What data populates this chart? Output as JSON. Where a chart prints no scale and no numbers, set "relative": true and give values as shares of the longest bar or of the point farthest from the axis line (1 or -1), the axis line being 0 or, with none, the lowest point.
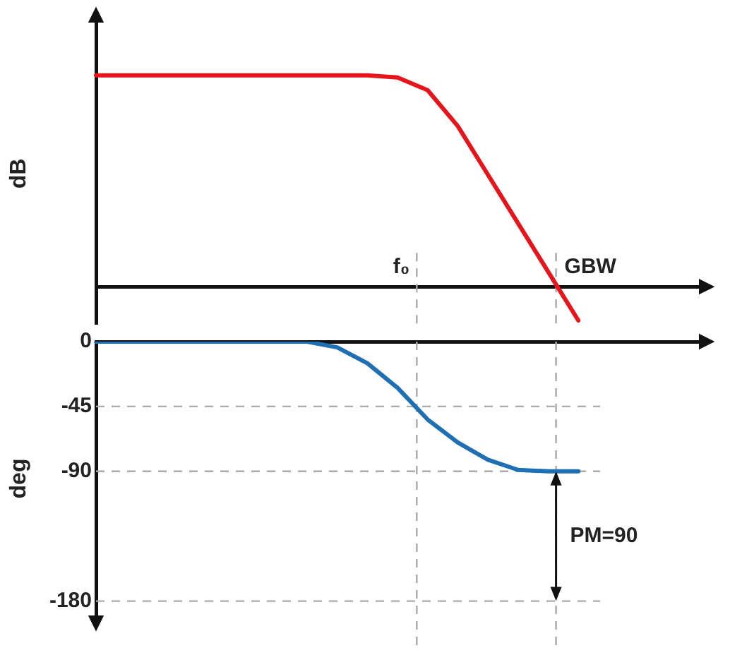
{
  "chart_data": [
    {
      "type": "line",
      "ylabel": "dB",
      "relative": true,
      "tick_labels": false,
      "grid": false,
      "legend": false,
      "marker": "none",
      "line_style": "solid",
      "categories": [
        null,
        null,
        null,
        null,
        null,
        null,
        null,
        null,
        null,
        null,
        null,
        null,
        null,
        null,
        null,
        null,
        null,
        null,
        null,
        null,
        null
      ],
      "series": [
        {
          "color": "#e8141b",
          "values": [
            1,
            1,
            1,
            1,
            1,
            1,
            1,
            1,
            1,
            1,
            0.99,
            0.93,
            0.76,
            0.53,
            0.3,
            0.07,
            -0.16,
            null,
            null,
            null,
            null
          ]
        }
      ],
      "annotations": [
        "f₀",
        "GBW"
      ]
    },
    {
      "type": "line",
      "ylabel": "deg",
      "ylim": [
        -190,
        0
      ],
      "yticks": [
        0,
        -45,
        -90,
        -180
      ],
      "tick_labels": "y",
      "grid": false,
      "legend": false,
      "marker": "none",
      "line_style": "solid",
      "categories": [
        null,
        null,
        null,
        null,
        null,
        null,
        null,
        null,
        null,
        null,
        null,
        null,
        null,
        null,
        null,
        null,
        null,
        null,
        null,
        null,
        null
      ],
      "series": [
        {
          "color": "#1f6fb5",
          "values": [
            0,
            0,
            0,
            0,
            0,
            0,
            0,
            0,
            -4,
            -15,
            -32,
            -54,
            -70,
            -82,
            -89,
            -90,
            -90,
            null,
            null,
            null,
            null
          ]
        }
      ],
      "ref_lines": [
        {
          "axis": "y",
          "value": -45,
          "color": "#aaaaaa",
          "line_style": "dashed"
        },
        {
          "axis": "y",
          "value": -90,
          "color": "#aaaaaa",
          "line_style": "dashed"
        },
        {
          "axis": "y",
          "value": -180,
          "color": "#aaaaaa",
          "line_style": "dashed"
        }
      ],
      "annotations": [
        "PM=90"
      ]
    }
  ]
}
